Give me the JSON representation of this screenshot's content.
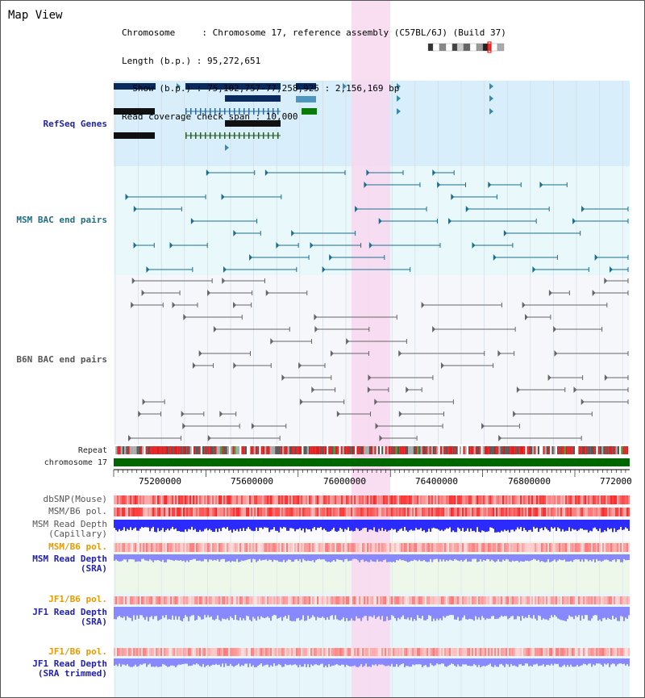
{
  "page": {
    "title": "Map View"
  },
  "info": {
    "chromosome_line": "Chromosome     : Chromosome 17, reference assembly (C57BL/6J) (Build 37)",
    "length_line": "Length (b.p.) : 95,272,651",
    "show_line": "  Show (b.p.) : 75,102,757-77,258,925 : 2,156,169 bp",
    "coverage_line": "Read coverage check span : 10,000"
  },
  "tracks": {
    "refseq": "RefSeq Genes",
    "msm_bac": "MSM BAC end pairs",
    "b6n_bac": "B6N BAC end pairs",
    "repeat": "Repeat",
    "chromosome": "chromosome 17",
    "dbsnp": "dbSNP(Mouse)",
    "msm_b6_pol_1": "MSM/B6 pol.",
    "msm_depth_cap": "MSM Read Depth\n(Capillary)",
    "msm_b6_pol_2": "MSM/B6 pol.",
    "msm_depth_sra": "MSM Read Depth\n(SRA)",
    "jf1_b6_pol_1": "JF1/B6 pol.",
    "jf1_depth_sra": "JF1 Read Depth\n(SRA)",
    "jf1_b6_pol_2": "JF1/B6 pol.",
    "jf1_depth_trim": "JF1 Read Depth\n(SRA trimmed)"
  },
  "axis": {
    "ticks": [
      "75200000",
      "75600000",
      "76000000",
      "76400000",
      "76800000",
      "772000"
    ]
  },
  "colors": {
    "refseq_bg": "#d8eefa",
    "msm_bg": "#e8f8fb",
    "highlight": "#f8d8f0",
    "chrom_bar": "#006600",
    "depth_blue": "#2b2bff",
    "depth_light": "#8888ff",
    "pol_red": "#ff3b3b",
    "gene_navy": "#0a2a5e"
  }
}
